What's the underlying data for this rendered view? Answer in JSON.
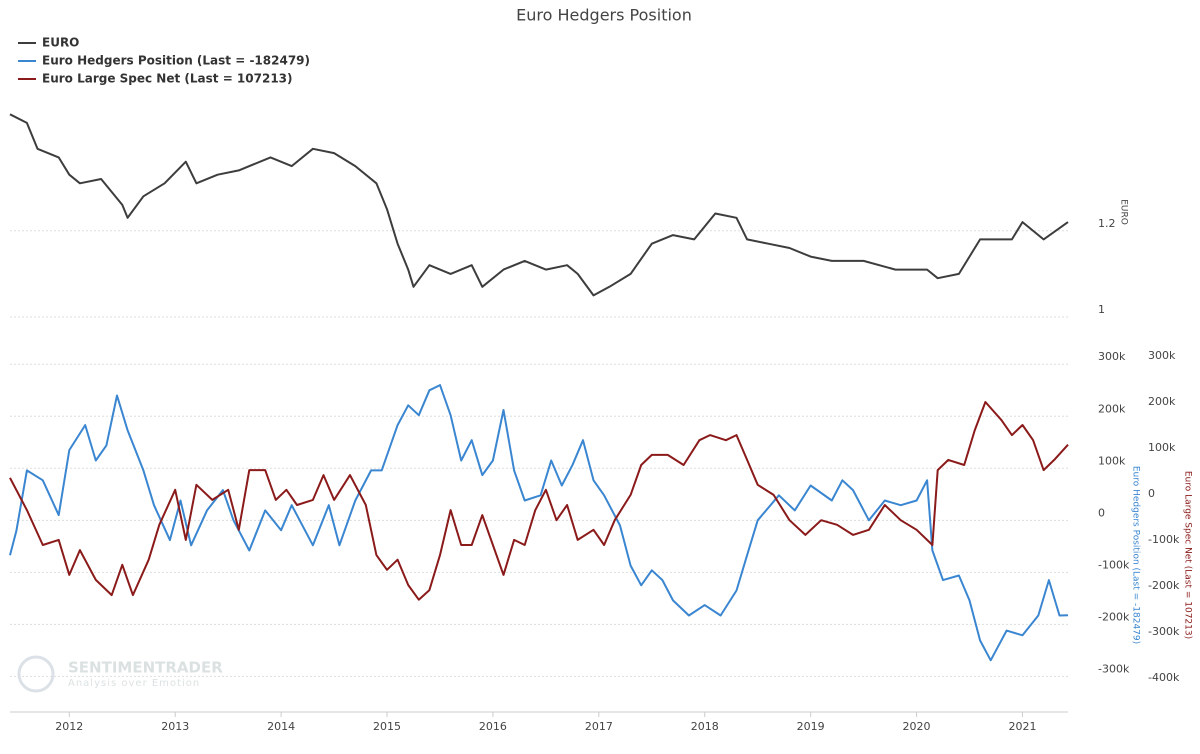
{
  "chart_data": [
    {
      "type": "line",
      "title": "Euro Hedgers Position",
      "ylabel": "EURO",
      "xlim": [
        2011.44,
        2021.43
      ],
      "ylim": [
        1.0,
        1.48
      ],
      "yticks": [
        1,
        1.2
      ],
      "grid": true,
      "legend": "top-left",
      "series": [
        {
          "name": "EURO",
          "color": "#3d3d3d",
          "x": [
            2011.44,
            2011.6,
            2011.7,
            2011.9,
            2012.0,
            2012.1,
            2012.3,
            2012.5,
            2012.55,
            2012.7,
            2012.9,
            2013.1,
            2013.2,
            2013.4,
            2013.6,
            2013.9,
            2014.1,
            2014.3,
            2014.5,
            2014.7,
            2014.9,
            2015.0,
            2015.1,
            2015.2,
            2015.25,
            2015.4,
            2015.6,
            2015.8,
            2015.9,
            2016.1,
            2016.3,
            2016.5,
            2016.7,
            2016.8,
            2016.95,
            2017.1,
            2017.3,
            2017.5,
            2017.7,
            2017.9,
            2018.1,
            2018.3,
            2018.4,
            2018.6,
            2018.8,
            2019.0,
            2019.2,
            2019.5,
            2019.8,
            2020.1,
            2020.2,
            2020.4,
            2020.5,
            2020.6,
            2020.9,
            2021.0,
            2021.2,
            2021.43
          ],
          "values": [
            1.47,
            1.45,
            1.39,
            1.37,
            1.33,
            1.31,
            1.32,
            1.26,
            1.23,
            1.28,
            1.31,
            1.36,
            1.31,
            1.33,
            1.34,
            1.37,
            1.35,
            1.39,
            1.38,
            1.35,
            1.31,
            1.25,
            1.17,
            1.11,
            1.07,
            1.12,
            1.1,
            1.12,
            1.07,
            1.11,
            1.13,
            1.11,
            1.12,
            1.1,
            1.05,
            1.07,
            1.1,
            1.17,
            1.19,
            1.18,
            1.24,
            1.23,
            1.18,
            1.17,
            1.16,
            1.14,
            1.13,
            1.13,
            1.11,
            1.11,
            1.09,
            1.1,
            1.14,
            1.18,
            1.18,
            1.22,
            1.18,
            1.22
          ]
        }
      ]
    },
    {
      "type": "line",
      "ylabel": "Euro Hedgers Position (Last = -182479)",
      "y2label": "Euro Large Spec Net (Last = 107213)",
      "xlim": [
        2011.44,
        2021.43
      ],
      "xticks": [
        2012,
        2013,
        2014,
        2015,
        2016,
        2017,
        2018,
        2019,
        2020,
        2021
      ],
      "ylim": [
        -355000,
        337000
      ],
      "yticks": [
        {
          "value": 300000,
          "label": "300k"
        },
        {
          "value": 200000,
          "label": "200k"
        },
        {
          "value": 100000,
          "label": "100k"
        },
        0,
        {
          "value": -100000,
          "label": "-100k"
        },
        {
          "value": -200000,
          "label": "-200k"
        },
        {
          "value": -300000,
          "label": "-300k"
        }
      ],
      "y2lim": [
        -459000,
        324000
      ],
      "y2ticks": [
        {
          "value": 300000,
          "label": "300k"
        },
        {
          "value": 200000,
          "label": "200k"
        },
        {
          "value": 100000,
          "label": "100k"
        },
        0,
        {
          "value": -100000,
          "label": "-100k"
        },
        {
          "value": -200000,
          "label": "-200k"
        },
        {
          "value": -300000,
          "label": "-300k"
        },
        {
          "value": -400000,
          "label": "-400k"
        }
      ],
      "grid": true,
      "watermark": {
        "brand": "SENTIMENTRADER",
        "tagline": "Analysis over Emotion"
      },
      "series": [
        {
          "name": "Euro Hedgers Position (Last = -182479)",
          "color": "#3a86d1",
          "axis": "y",
          "x": [
            2011.44,
            2011.5,
            2011.6,
            2011.75,
            2011.9,
            2012.0,
            2012.15,
            2012.25,
            2012.35,
            2012.45,
            2012.55,
            2012.7,
            2012.8,
            2012.95,
            2013.05,
            2013.15,
            2013.3,
            2013.45,
            2013.55,
            2013.7,
            2013.85,
            2014.0,
            2014.1,
            2014.3,
            2014.45,
            2014.55,
            2014.7,
            2014.85,
            2014.95,
            2015.1,
            2015.2,
            2015.3,
            2015.4,
            2015.5,
            2015.6,
            2015.7,
            2015.8,
            2015.9,
            2016.0,
            2016.1,
            2016.2,
            2016.3,
            2016.45,
            2016.55,
            2016.65,
            2016.75,
            2016.85,
            2016.95,
            2017.05,
            2017.2,
            2017.3,
            2017.4,
            2017.5,
            2017.6,
            2017.7,
            2017.85,
            2018.0,
            2018.15,
            2018.3,
            2018.4,
            2018.5,
            2018.7,
            2018.85,
            2019.0,
            2019.2,
            2019.3,
            2019.4,
            2019.55,
            2019.7,
            2019.85,
            2020.0,
            2020.1,
            2020.15,
            2020.25,
            2020.4,
            2020.5,
            2020.6,
            2020.7,
            2020.85,
            2021.0,
            2021.15,
            2021.25,
            2021.35,
            2021.43
          ],
          "values": [
            -67000,
            -20000,
            96000,
            77000,
            10000,
            135000,
            183000,
            115000,
            144000,
            240000,
            173000,
            96000,
            29000,
            -38000,
            38000,
            -48000,
            19000,
            58000,
            0,
            -58000,
            19000,
            -19000,
            29000,
            -48000,
            29000,
            -48000,
            38000,
            96000,
            96000,
            183000,
            221000,
            202000,
            250000,
            260000,
            202000,
            115000,
            154000,
            87000,
            115000,
            212000,
            96000,
            38000,
            48000,
            115000,
            67000,
            106000,
            154000,
            77000,
            48000,
            -10000,
            -87000,
            -125000,
            -96000,
            -115000,
            -154000,
            -183000,
            -163000,
            -183000,
            -135000,
            -67000,
            0,
            48000,
            19000,
            67000,
            38000,
            77000,
            58000,
            0,
            38000,
            29000,
            38000,
            77000,
            -58000,
            -115000,
            -106000,
            -154000,
            -231000,
            -269000,
            -212000,
            -221000,
            -183000,
            -115000,
            -183000,
            -182479
          ]
        },
        {
          "name": "Euro Large Spec Net (Last = 107213)",
          "color": "#8b1a1a",
          "axis": "y2",
          "x": [
            2011.44,
            2011.6,
            2011.75,
            2011.9,
            2012.0,
            2012.1,
            2012.25,
            2012.4,
            2012.5,
            2012.6,
            2012.75,
            2012.85,
            2013.0,
            2013.1,
            2013.2,
            2013.35,
            2013.5,
            2013.6,
            2013.7,
            2013.85,
            2013.95,
            2014.05,
            2014.15,
            2014.3,
            2014.4,
            2014.5,
            2014.65,
            2014.8,
            2014.9,
            2015.0,
            2015.1,
            2015.2,
            2015.3,
            2015.4,
            2015.5,
            2015.6,
            2015.7,
            2015.8,
            2015.9,
            2016.0,
            2016.1,
            2016.2,
            2016.3,
            2016.4,
            2016.5,
            2016.6,
            2016.7,
            2016.8,
            2016.95,
            2017.05,
            2017.15,
            2017.3,
            2017.4,
            2017.5,
            2017.65,
            2017.8,
            2017.95,
            2018.05,
            2018.2,
            2018.3,
            2018.4,
            2018.5,
            2018.65,
            2018.8,
            2018.95,
            2019.1,
            2019.25,
            2019.4,
            2019.55,
            2019.7,
            2019.85,
            2020.0,
            2020.15,
            2020.2,
            2020.3,
            2020.45,
            2020.55,
            2020.65,
            2020.8,
            2020.9,
            2021.0,
            2021.1,
            2021.2,
            2021.3,
            2021.43
          ],
          "values": [
            35000,
            -35000,
            -111000,
            -100000,
            -176000,
            -122000,
            -187000,
            -220000,
            -154000,
            -220000,
            -143000,
            -67000,
            9000,
            -100000,
            20000,
            -13000,
            9000,
            -78000,
            52000,
            52000,
            -13000,
            9000,
            -24000,
            -13000,
            41000,
            -13000,
            41000,
            -24000,
            -133000,
            -165000,
            -143000,
            -198000,
            -230000,
            -209000,
            -133000,
            -35000,
            -111000,
            -111000,
            -46000,
            -111000,
            -176000,
            -100000,
            -111000,
            -35000,
            9000,
            -57000,
            -24000,
            -100000,
            -78000,
            -111000,
            -57000,
            -2000,
            63000,
            85000,
            85000,
            63000,
            117000,
            128000,
            117000,
            128000,
            74000,
            20000,
            -2000,
            -57000,
            -89000,
            -57000,
            -67000,
            -89000,
            -78000,
            -24000,
            -57000,
            -78000,
            -111000,
            52000,
            74000,
            63000,
            139000,
            200000,
            161000,
            128000,
            150000,
            117000,
            52000,
            74000,
            107213
          ]
        }
      ]
    }
  ]
}
